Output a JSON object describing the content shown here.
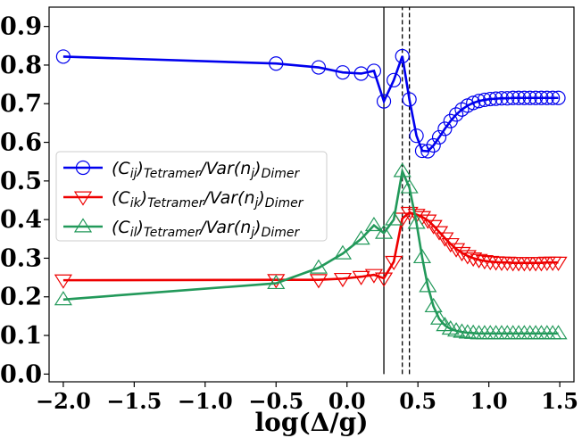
{
  "chart_data": {
    "type": "line",
    "xlabel": "log(Δ/g)",
    "ylabel": "",
    "xlim": [
      -2.1,
      1.6
    ],
    "ylim": [
      -0.02,
      0.95
    ],
    "x_ticks": [
      -2.0,
      -1.5,
      -1.0,
      -0.5,
      0.0,
      0.5,
      1.0,
      1.5
    ],
    "x_tick_labels": [
      "−2.0",
      "−1.5",
      "−1.0",
      "−0.5",
      "0.0",
      "0.5",
      "1.0",
      "1.5"
    ],
    "y_ticks": [
      0.0,
      0.1,
      0.2,
      0.3,
      0.4,
      0.5,
      0.6,
      0.7,
      0.8,
      0.9
    ],
    "y_tick_labels": [
      "0.0",
      "0.1",
      "0.2",
      "0.3",
      "0.4",
      "0.5",
      "0.6",
      "0.7",
      "0.8",
      "0.9"
    ],
    "grid": false,
    "legend_position": "center-left",
    "vertical_lines": [
      {
        "x": 0.26,
        "style": "solid"
      },
      {
        "x": 0.39,
        "style": "dashed"
      },
      {
        "x": 0.44,
        "style": "dashed"
      }
    ],
    "series": [
      {
        "name": "(C_ij)_Tetramer/Var(n_j)_Dimer",
        "legend_base": "(C",
        "legend_sub1": "ij",
        "legend_mid": ")",
        "legend_sub2": "Tetramer",
        "legend_mid2": "/Var(n",
        "legend_sub3": "j",
        "legend_mid3": ")",
        "legend_sub4": "Dimer",
        "color": "#0000ee",
        "marker": "circle",
        "x": [
          -2.0,
          -0.5,
          -0.2,
          -0.03,
          0.1,
          0.19,
          0.26,
          0.33,
          0.39,
          0.44,
          0.49,
          0.53,
          0.57,
          0.61,
          0.65,
          0.69,
          0.73,
          0.77,
          0.81,
          0.85,
          0.89,
          0.93,
          0.97,
          1.01,
          1.05,
          1.09,
          1.13,
          1.17,
          1.21,
          1.25,
          1.29,
          1.33,
          1.37,
          1.41,
          1.45,
          1.49
        ],
        "y": [
          0.822,
          0.804,
          0.794,
          0.781,
          0.778,
          0.785,
          0.706,
          0.761,
          0.823,
          0.711,
          0.617,
          0.578,
          0.577,
          0.592,
          0.613,
          0.635,
          0.655,
          0.672,
          0.685,
          0.695,
          0.702,
          0.707,
          0.71,
          0.712,
          0.713,
          0.714,
          0.714,
          0.715,
          0.715,
          0.715,
          0.715,
          0.715,
          0.715,
          0.715,
          0.715,
          0.715
        ]
      },
      {
        "name": "(C_ik)_Tetramer/Var(n_j)_Dimer",
        "legend_base": "(C",
        "legend_sub1": "ik",
        "legend_mid": ")",
        "legend_sub2": "Tetramer",
        "legend_mid2": "/Var(n",
        "legend_sub3": "j",
        "legend_mid3": ")",
        "legend_sub4": "Dimer",
        "color": "#ee0000",
        "marker": "triangle-down",
        "x": [
          -2.0,
          -0.5,
          -0.2,
          -0.03,
          0.1,
          0.19,
          0.26,
          0.33,
          0.39,
          0.44,
          0.49,
          0.53,
          0.57,
          0.61,
          0.65,
          0.69,
          0.73,
          0.77,
          0.81,
          0.85,
          0.89,
          0.93,
          0.97,
          1.01,
          1.05,
          1.09,
          1.13,
          1.17,
          1.21,
          1.25,
          1.29,
          1.33,
          1.37,
          1.41,
          1.45,
          1.49
        ],
        "y": [
          0.243,
          0.244,
          0.244,
          0.247,
          0.252,
          0.257,
          0.248,
          0.291,
          0.403,
          0.418,
          0.413,
          0.407,
          0.398,
          0.384,
          0.368,
          0.352,
          0.337,
          0.324,
          0.314,
          0.306,
          0.3,
          0.296,
          0.293,
          0.291,
          0.29,
          0.289,
          0.289,
          0.288,
          0.288,
          0.288,
          0.288,
          0.288,
          0.288,
          0.289,
          0.289,
          0.289
        ]
      },
      {
        "name": "(C_il)_Tetramer/Var(n_j)_Dimer",
        "legend_base": "(C",
        "legend_sub1": "il",
        "legend_mid": ")",
        "legend_sub2": "Tetramer",
        "legend_mid2": "/Var(n",
        "legend_sub3": "j",
        "legend_mid3": ")",
        "legend_sub4": "Dimer",
        "color": "#22995a",
        "marker": "triangle-up",
        "x": [
          -2.0,
          -0.5,
          -0.2,
          -0.03,
          0.1,
          0.19,
          0.26,
          0.33,
          0.39,
          0.44,
          0.49,
          0.53,
          0.57,
          0.61,
          0.65,
          0.69,
          0.73,
          0.77,
          0.81,
          0.85,
          0.89,
          0.93,
          0.97,
          1.01,
          1.05,
          1.09,
          1.13,
          1.17,
          1.21,
          1.25,
          1.29,
          1.33,
          1.37,
          1.41,
          1.45,
          1.49
        ],
        "y": [
          0.193,
          0.235,
          0.275,
          0.312,
          0.35,
          0.385,
          0.365,
          0.4,
          0.525,
          0.483,
          0.391,
          0.302,
          0.227,
          0.175,
          0.143,
          0.126,
          0.117,
          0.112,
          0.109,
          0.107,
          0.106,
          0.105,
          0.105,
          0.105,
          0.105,
          0.105,
          0.105,
          0.105,
          0.105,
          0.105,
          0.105,
          0.105,
          0.105,
          0.105,
          0.105,
          0.105
        ]
      }
    ]
  }
}
